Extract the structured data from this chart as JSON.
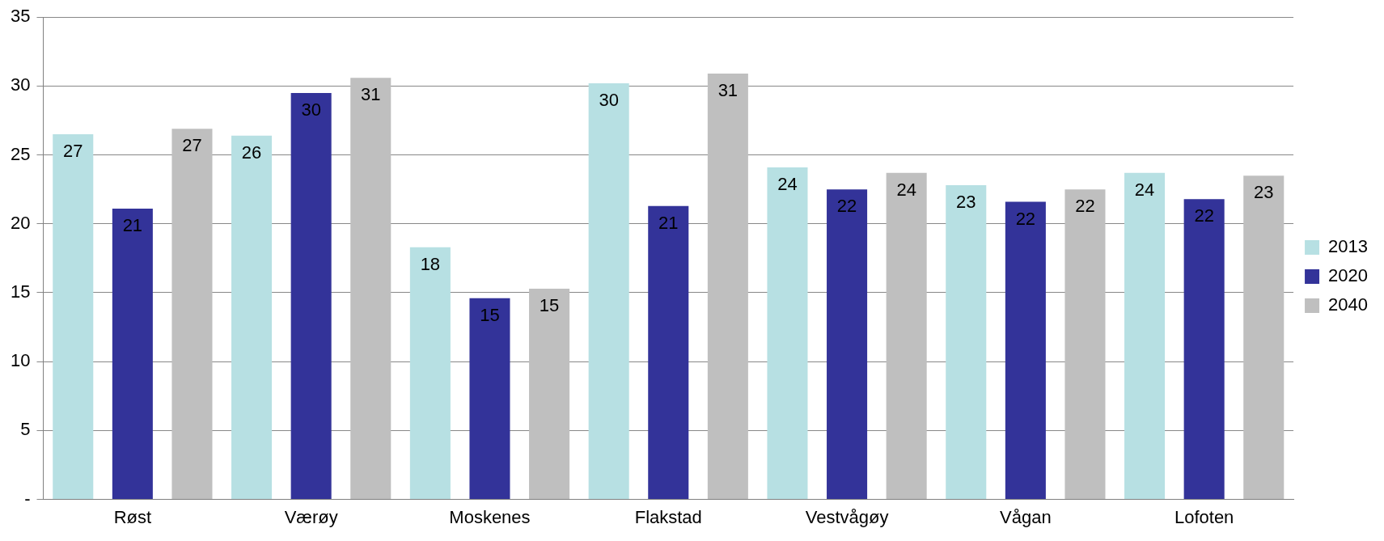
{
  "chart_data": {
    "type": "bar",
    "categories": [
      "Røst",
      "Værøy",
      "Moskenes",
      "Flakstad",
      "Vestvågøy",
      "Vågan",
      "Lofoten"
    ],
    "series": [
      {
        "name": "2013",
        "color": "#b7e0e3",
        "values": [
          26.5,
          26.4,
          18.3,
          30.2,
          24.1,
          22.8,
          23.7
        ],
        "value_labels": [
          "27",
          "26",
          "18",
          "30",
          "24",
          "23",
          "24"
        ]
      },
      {
        "name": "2020",
        "color": "#333399",
        "values": [
          21.1,
          29.5,
          14.6,
          21.3,
          22.5,
          21.6,
          21.8
        ],
        "value_labels": [
          "21",
          "30",
          "15",
          "21",
          "22",
          "22",
          "22"
        ]
      },
      {
        "name": "2040",
        "color": "#bfbfbf",
        "values": [
          26.9,
          30.6,
          15.3,
          30.9,
          23.7,
          22.5,
          23.5
        ],
        "value_labels": [
          "27",
          "31",
          "15",
          "31",
          "24",
          "22",
          "23"
        ]
      }
    ],
    "ylim": [
      0,
      35
    ],
    "yticks": [
      {
        "value": 0,
        "label": "-"
      },
      5,
      10,
      15,
      20,
      25,
      30,
      35
    ],
    "grid": "y",
    "legend": "right"
  }
}
